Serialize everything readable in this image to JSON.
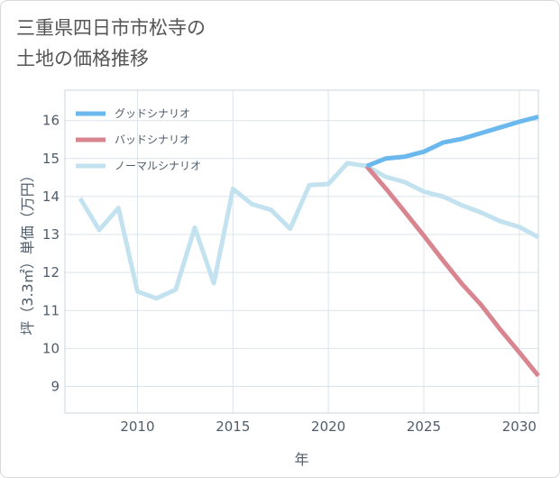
{
  "title": "三重県四日市市松寺の\n土地の価格推移",
  "chart_data": {
    "type": "line",
    "xlabel": "年",
    "ylabel": "坪（3.3㎡）単価（万円）",
    "xlim": [
      2006.2,
      2031
    ],
    "ylim": [
      8.3,
      16.8
    ],
    "xticks": [
      2010,
      2015,
      2020,
      2025,
      2030
    ],
    "yticks": [
      9,
      10,
      11,
      12,
      13,
      14,
      15,
      16
    ],
    "grid": true,
    "legend_position": "top-left",
    "series": [
      {
        "name": "グッドシナリオ",
        "color": "#6bb8ee",
        "x": [
          2022,
          2023,
          2024,
          2025,
          2026,
          2027,
          2028,
          2029,
          2030,
          2031
        ],
        "y": [
          14.8,
          15.0,
          15.05,
          15.18,
          15.42,
          15.52,
          15.67,
          15.82,
          15.97,
          16.1
        ]
      },
      {
        "name": "バッドシナリオ",
        "color": "#d9858f",
        "x": [
          2022,
          2023,
          2024,
          2025,
          2026,
          2027,
          2028,
          2029,
          2030,
          2031
        ],
        "y": [
          14.8,
          14.22,
          13.6,
          12.97,
          12.32,
          11.7,
          11.15,
          10.5,
          9.9,
          9.28
        ]
      },
      {
        "name": "ノーマルシナリオ",
        "color": "#c3e2ef",
        "x": [
          2007,
          2008,
          2009,
          2010,
          2011,
          2012,
          2013,
          2014,
          2015,
          2016,
          2017,
          2018,
          2019,
          2020,
          2021,
          2022,
          2023,
          2024,
          2025,
          2026,
          2027,
          2028,
          2029,
          2030,
          2031
        ],
        "y": [
          13.95,
          13.12,
          13.7,
          11.5,
          11.32,
          11.55,
          13.18,
          11.72,
          14.2,
          13.8,
          13.65,
          13.15,
          14.3,
          14.33,
          14.88,
          14.8,
          14.52,
          14.38,
          14.13,
          14.0,
          13.77,
          13.58,
          13.35,
          13.2,
          12.93
        ]
      }
    ]
  }
}
